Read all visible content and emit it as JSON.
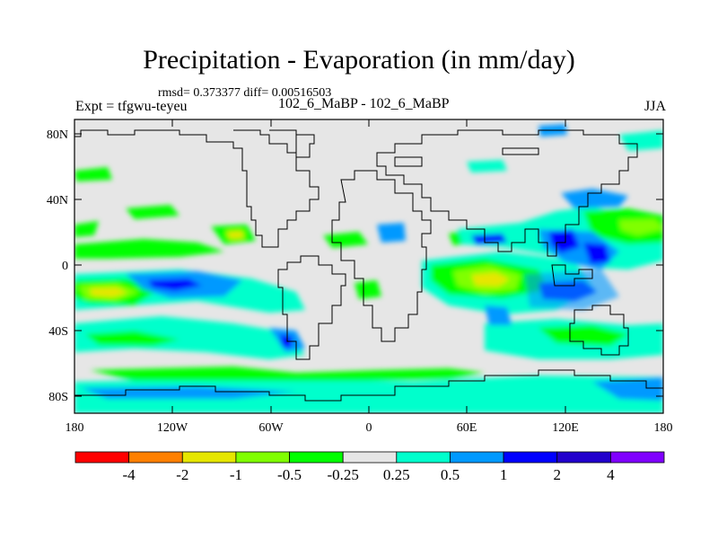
{
  "title": "Precipitation - Evaporation (in mm/day)",
  "stats": "rmsd= 0.373377  diff= 0.00516503",
  "expt": "Expt = tfgwu-teyeu",
  "subtitle": "102_6_MaBP - 102_6_MaBP",
  "season": "JJA",
  "axes": {
    "x_ticks": [
      "180",
      "120W",
      "60W",
      "0",
      "60E",
      "120E",
      "180"
    ],
    "y_ticks": [
      "80N",
      "40N",
      "0",
      "40S",
      "80S"
    ]
  },
  "legend": {
    "labels": [
      "-4",
      "-2",
      "-1",
      "-0.5",
      "-0.25",
      "0.25",
      "0.5",
      "1",
      "2",
      "4"
    ],
    "colors": [
      "#ff0000",
      "#ff8000",
      "#e6e600",
      "#80ff00",
      "#00ff00",
      "#e6e6e6",
      "#00ffcc",
      "#0099ff",
      "#0000ff",
      "#2200cc",
      "#8000ff"
    ]
  },
  "colors": {
    "background_field": "#e6e6e6",
    "coastline": "#000000"
  }
}
